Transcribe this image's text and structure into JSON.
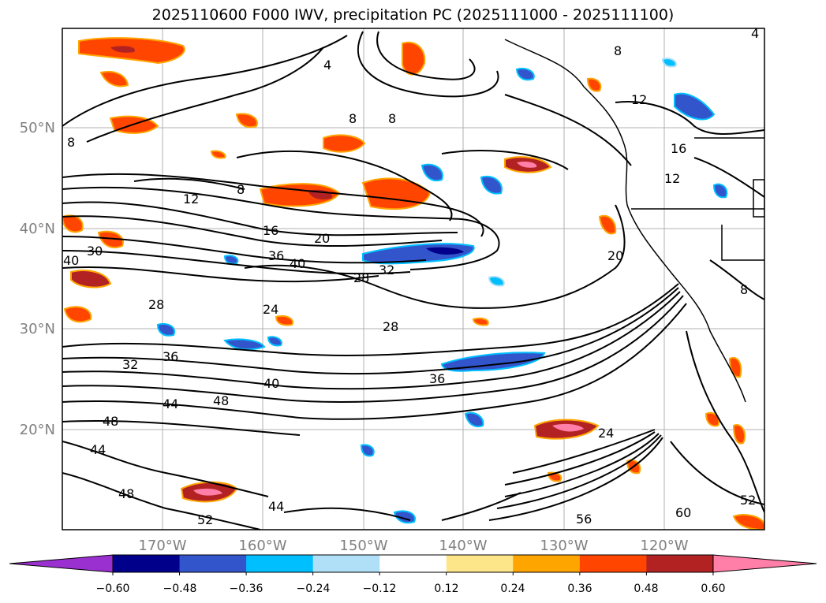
{
  "title": "2025110600 F000 IWV, precipitation PC (2025111000 - 2025111100)",
  "lat_labels": [
    "50°N",
    "40°N",
    "30°N",
    "20°N"
  ],
  "lon_labels": [
    "170°W",
    "160°W",
    "150°W",
    "140°W",
    "130°W",
    "120°W"
  ],
  "colorbar": {
    "colors": [
      "#9b30d0",
      "#00008b",
      "#3355cc",
      "#00bfff",
      "#b0e0f8",
      "#ffffff",
      "#fde68a",
      "#ffa500",
      "#ff4500",
      "#b22222",
      "#ff7fa8"
    ],
    "ticks": [
      "−0.60",
      "−0.48",
      "−0.36",
      "−0.24",
      "−0.12",
      "0.12",
      "0.24",
      "0.36",
      "0.48",
      "0.60"
    ]
  },
  "contour_labels": [
    "4",
    "4",
    "8",
    "8",
    "8",
    "8",
    "8",
    "8",
    "12",
    "12",
    "12",
    "16",
    "16",
    "20",
    "20",
    "24",
    "24",
    "28",
    "28",
    "28",
    "30",
    "32",
    "32",
    "36",
    "36",
    "36",
    "40",
    "40",
    "40",
    "44",
    "44",
    "44",
    "48",
    "48",
    "48",
    "52",
    "52",
    "56",
    "60"
  ]
}
